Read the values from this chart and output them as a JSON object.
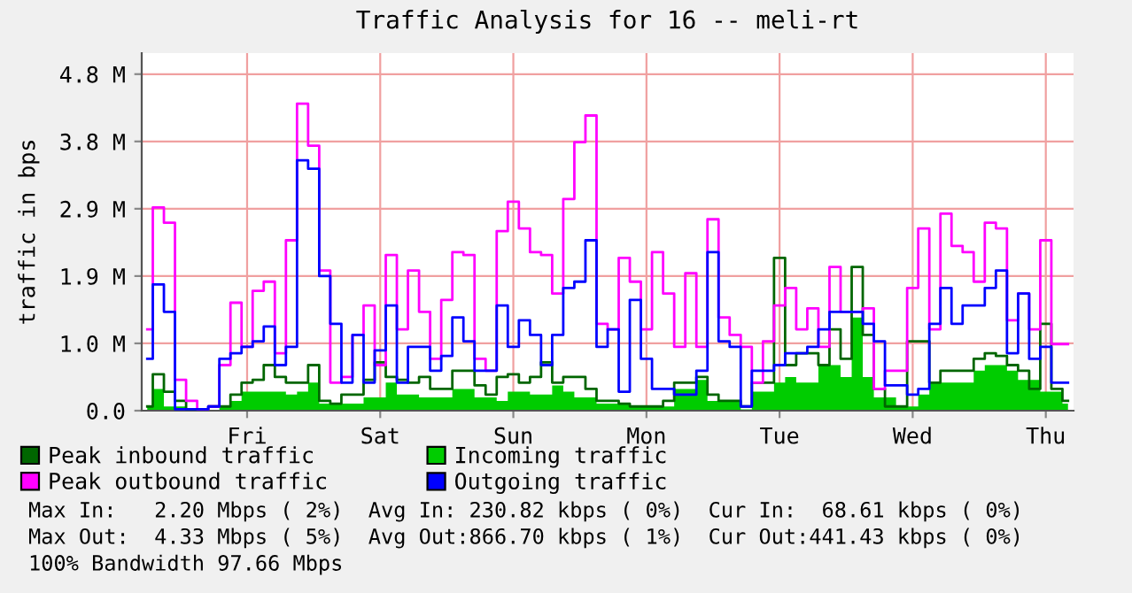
{
  "chart_data": {
    "type": "step",
    "title": "Traffic Analysis for 16 -- meli-rt",
    "ylabel": "traffic in bps",
    "categories": [
      null,
      null,
      null,
      null,
      null,
      null,
      null,
      null,
      null,
      "Fri",
      null,
      null,
      null,
      null,
      null,
      null,
      null,
      null,
      null,
      null,
      null,
      "Sat",
      null,
      null,
      null,
      null,
      null,
      null,
      null,
      null,
      null,
      null,
      null,
      "Sun",
      null,
      null,
      null,
      null,
      null,
      null,
      null,
      null,
      null,
      null,
      null,
      "Mon",
      null,
      null,
      null,
      null,
      null,
      null,
      null,
      null,
      null,
      null,
      null,
      "Tue",
      null,
      null,
      null,
      null,
      null,
      null,
      null,
      null,
      null,
      null,
      null,
      "Wed",
      null,
      null,
      null,
      null,
      null,
      null,
      null,
      null,
      null,
      null,
      null,
      "Thu",
      null,
      null
    ],
    "ylim": [
      0,
      5.1
    ],
    "yticks": [
      {
        "value": 0,
        "label": "0.0"
      },
      {
        "value": 0.96,
        "label": "1.0 M"
      },
      {
        "value": 1.92,
        "label": "1.9 M"
      },
      {
        "value": 2.88,
        "label": "2.9 M"
      },
      {
        "value": 3.84,
        "label": "3.8 M"
      },
      {
        "value": 4.8,
        "label": "4.8 M"
      }
    ],
    "grid": true,
    "legend": "bottom",
    "series": [
      {
        "name": "Peak inbound traffic",
        "color": "#006600",
        "values": [
          0.06,
          0.52,
          0.27,
          0.14,
          0.02,
          0.02,
          0.06,
          0.06,
          0.23,
          0.4,
          0.44,
          0.65,
          0.48,
          0.4,
          0.4,
          0.65,
          0.14,
          0.1,
          0.23,
          0.23,
          0.44,
          0.69,
          0.48,
          0.44,
          0.4,
          0.48,
          0.31,
          0.31,
          0.57,
          0.57,
          0.36,
          0.23,
          0.48,
          0.52,
          0.4,
          0.48,
          0.69,
          0.4,
          0.48,
          0.48,
          0.31,
          0.14,
          0.14,
          0.1,
          0.06,
          0.06,
          0.06,
          0.14,
          0.4,
          0.4,
          0.48,
          0.23,
          0.14,
          0.14,
          0.06,
          0.4,
          0.4,
          2.18,
          0.65,
          0.82,
          0.82,
          0.65,
          1.16,
          0.74,
          2.05,
          1.08,
          0.31,
          0.06,
          0.06,
          0.99,
          0.99,
          0.4,
          0.57,
          0.57,
          0.57,
          0.74,
          0.82,
          0.78,
          0.65,
          0.57,
          0.31,
          1.24,
          0.31,
          0.14
        ]
      },
      {
        "name": "Peak outbound traffic",
        "color": "#ff00ff",
        "values": [
          1.16,
          2.9,
          2.68,
          0.44,
          0.14,
          0.02,
          0.06,
          0.65,
          1.54,
          0.91,
          1.71,
          1.84,
          0.82,
          2.43,
          4.38,
          3.78,
          2.0,
          0.4,
          0.48,
          1.08,
          1.5,
          0.65,
          2.22,
          1.16,
          2.0,
          1.41,
          0.74,
          1.58,
          2.26,
          2.22,
          0.74,
          0.57,
          2.56,
          2.98,
          2.6,
          2.26,
          2.22,
          1.67,
          3.02,
          3.83,
          4.21,
          1.24,
          1.16,
          2.18,
          1.84,
          1.16,
          2.26,
          1.67,
          0.91,
          1.96,
          0.91,
          2.73,
          1.33,
          1.08,
          0.91,
          0.4,
          0.99,
          1.5,
          1.75,
          1.16,
          1.46,
          0.91,
          2.05,
          1.41,
          1.41,
          1.46,
          0.31,
          0.57,
          0.57,
          1.75,
          2.6,
          1.16,
          2.81,
          2.35,
          2.26,
          1.84,
          2.68,
          2.6,
          1.29,
          1.67,
          1.16,
          2.43,
          0.95,
          0.95
        ]
      },
      {
        "name": "Incoming traffic",
        "type": "area",
        "color": "#00cc00",
        "values": [
          0.06,
          0.31,
          0.06,
          0.06,
          0.0,
          0.0,
          0.0,
          0.06,
          0.14,
          0.27,
          0.27,
          0.27,
          0.27,
          0.23,
          0.27,
          0.4,
          0.1,
          0.1,
          0.1,
          0.1,
          0.19,
          0.19,
          0.4,
          0.23,
          0.23,
          0.19,
          0.19,
          0.19,
          0.31,
          0.31,
          0.19,
          0.19,
          0.14,
          0.27,
          0.27,
          0.23,
          0.23,
          0.36,
          0.27,
          0.19,
          0.19,
          0.1,
          0.1,
          0.1,
          0.06,
          0.06,
          0.06,
          0.06,
          0.31,
          0.31,
          0.44,
          0.14,
          0.14,
          0.14,
          0.02,
          0.27,
          0.27,
          0.4,
          0.48,
          0.4,
          0.4,
          0.65,
          0.65,
          0.48,
          1.33,
          0.48,
          0.19,
          0.19,
          0.06,
          0.06,
          0.23,
          0.4,
          0.4,
          0.4,
          0.4,
          0.57,
          0.65,
          0.65,
          0.57,
          0.44,
          0.44,
          0.27,
          0.27,
          0.1
        ]
      },
      {
        "name": "Outgoing traffic",
        "color": "#0000ff",
        "values": [
          0.74,
          1.8,
          1.41,
          0.02,
          0.02,
          0.02,
          0.06,
          0.74,
          0.82,
          0.91,
          0.99,
          1.2,
          0.65,
          0.91,
          3.57,
          3.45,
          1.92,
          1.24,
          0.4,
          1.08,
          0.4,
          0.86,
          1.5,
          0.4,
          0.91,
          0.91,
          0.57,
          0.78,
          1.33,
          0.99,
          0.57,
          0.57,
          1.5,
          0.91,
          1.29,
          1.08,
          0.65,
          1.08,
          1.75,
          1.84,
          2.43,
          0.91,
          1.16,
          0.27,
          1.58,
          0.74,
          0.31,
          0.31,
          0.23,
          0.23,
          0.57,
          2.26,
          0.99,
          0.91,
          0.06,
          0.57,
          0.57,
          0.65,
          0.82,
          0.82,
          0.91,
          1.16,
          1.41,
          1.41,
          1.41,
          1.24,
          0.99,
          0.36,
          0.36,
          0.23,
          0.31,
          1.24,
          1.75,
          1.24,
          1.5,
          1.5,
          1.75,
          2.0,
          0.82,
          1.67,
          0.74,
          0.91,
          0.4,
          0.4
        ]
      }
    ],
    "annotations": [
      "Max In:   2.20 Mbps ( 2%)  Avg In: 230.82 kbps ( 0%)  Cur In:  68.61 kbps ( 0%)",
      "Max Out:  4.33 Mbps ( 5%)  Avg Out:866.70 kbps ( 1%)  Cur Out:441.43 kbps ( 0%)",
      "100% Bandwidth 97.66 Mbps"
    ]
  }
}
